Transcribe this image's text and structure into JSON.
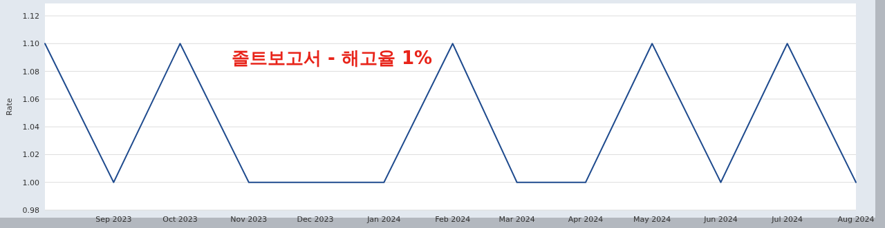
{
  "chart_data": {
    "type": "line",
    "ylabel": "Rate",
    "x": [
      "2023-08-01",
      "2023-09-01",
      "2023-10-01",
      "2023-11-01",
      "2023-12-01",
      "2024-01-01",
      "2024-02-01",
      "2024-03-01",
      "2024-04-01",
      "2024-05-01",
      "2024-06-01",
      "2024-07-01",
      "2024-08-01"
    ],
    "series": [
      {
        "color": "#1f4b8e",
        "values": [
          1.1,
          1.0,
          1.1,
          1.0,
          1.0,
          1.0,
          1.1,
          1.0,
          1.0,
          1.1,
          1.0,
          1.1,
          1.0
        ]
      }
    ],
    "xlim": [
      "2023-08-01",
      "2024-08-01"
    ],
    "xticks": [
      {
        "value": "2023-09-01",
        "label": "Sep 2023"
      },
      {
        "value": "2023-10-01",
        "label": "Oct 2023"
      },
      {
        "value": "2023-11-01",
        "label": "Nov 2023"
      },
      {
        "value": "2023-12-01",
        "label": "Dec 2023"
      },
      {
        "value": "2024-01-01",
        "label": "Jan 2024"
      },
      {
        "value": "2024-02-01",
        "label": "Feb 2024"
      },
      {
        "value": "2024-03-01",
        "label": "Mar 2024"
      },
      {
        "value": "2024-04-01",
        "label": "Apr 2024"
      },
      {
        "value": "2024-05-01",
        "label": "May 2024"
      },
      {
        "value": "2024-06-01",
        "label": "Jun 2024"
      },
      {
        "value": "2024-07-01",
        "label": "Jul 2024"
      },
      {
        "value": "2024-08-01",
        "label": "Aug 2024"
      }
    ],
    "ylim": [
      0.98,
      1.12
    ],
    "yticks": [
      {
        "value": 0.98,
        "label": "0.98"
      },
      {
        "value": 1.0,
        "label": "1.00"
      },
      {
        "value": 1.02,
        "label": "1.02"
      },
      {
        "value": 1.04,
        "label": "1.04"
      },
      {
        "value": 1.06,
        "label": "1.06"
      },
      {
        "value": 1.08,
        "label": "1.08"
      },
      {
        "value": 1.1,
        "label": "1.10"
      },
      {
        "value": 1.12,
        "label": "1.12"
      }
    ],
    "grid": "y",
    "annotations": [
      "졸트보고서 - 해고율 1%"
    ]
  }
}
